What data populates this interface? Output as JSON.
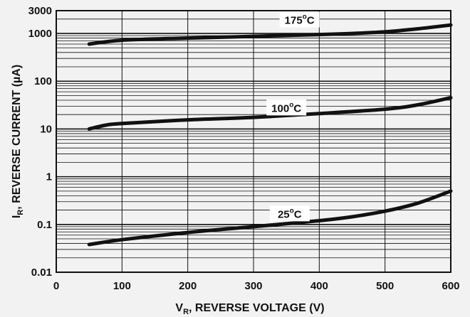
{
  "chart_data": {
    "type": "line",
    "title": "",
    "xlabel": "V_R, REVERSE VOLTAGE (V)",
    "xlabel_main": "V",
    "xlabel_sub": "R",
    "xlabel_rest": ", REVERSE VOLTAGE (V)",
    "ylabel": "I_R, REVERSE CURRENT (µA)",
    "ylabel_main": "I",
    "ylabel_sub": "R",
    "ylabel_rest": ", REVERSE CURRENT (µA)",
    "xlim": [
      0,
      600
    ],
    "ylim": [
      0.01,
      3000
    ],
    "yscale": "log",
    "grid": true,
    "x_ticks": [
      "0",
      "100",
      "200",
      "300",
      "400",
      "500",
      "600"
    ],
    "y_ticks": [
      {
        "value": 0.01,
        "label": "0.01"
      },
      {
        "value": 0.1,
        "label": "0.1"
      },
      {
        "value": 1,
        "label": "1"
      },
      {
        "value": 10,
        "label": "10"
      },
      {
        "value": 100,
        "label": "100"
      },
      {
        "value": 1000,
        "label": "1000"
      },
      {
        "value": 3000,
        "label": "3000"
      }
    ],
    "series": [
      {
        "name": "175°C",
        "label_main": "175",
        "label_sup": "o",
        "label_unit": "C",
        "label_at": [
          370,
          1950
        ],
        "x": [
          50,
          100,
          200,
          300,
          400,
          450,
          500,
          550,
          600
        ],
        "y": [
          600,
          720,
          800,
          870,
          950,
          1000,
          1080,
          1250,
          1500
        ]
      },
      {
        "name": "100°C",
        "label_main": "100",
        "label_sup": "o",
        "label_unit": "C",
        "label_at": [
          350,
          28
        ],
        "x": [
          50,
          75,
          100,
          200,
          300,
          400,
          500,
          550,
          600
        ],
        "y": [
          10,
          12,
          13,
          15.5,
          17.5,
          21,
          26,
          32,
          45
        ]
      },
      {
        "name": "25°C",
        "label_main": "25",
        "label_sup": "o",
        "label_unit": "C",
        "label_at": [
          355,
          0.17
        ],
        "x": [
          50,
          100,
          200,
          300,
          400,
          450,
          500,
          550,
          600
        ],
        "y": [
          0.038,
          0.048,
          0.068,
          0.09,
          0.12,
          0.145,
          0.19,
          0.28,
          0.5
        ]
      }
    ]
  }
}
